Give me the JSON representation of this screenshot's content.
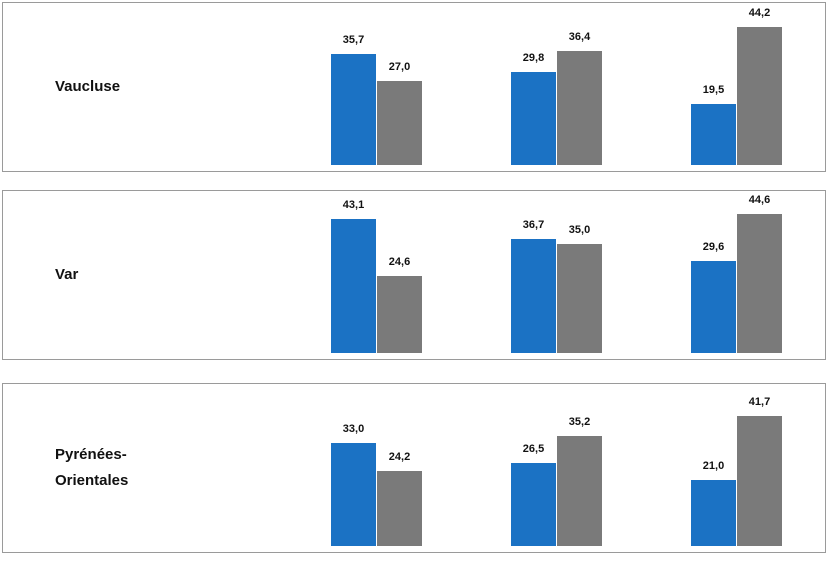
{
  "chart_data": [
    {
      "type": "bar",
      "title": "Vaucluse",
      "categories": [
        null,
        null,
        null
      ],
      "series": [
        {
          "color": "#1b72c4",
          "values": [
            35.7,
            29.8,
            19.5
          ],
          "value_labels": [
            "35,7",
            "29,8",
            "19,5"
          ]
        },
        {
          "color": "#7a7a7a",
          "values": [
            27.0,
            36.4,
            44.2
          ],
          "value_labels": [
            "27,0",
            "36,4",
            "44,2"
          ]
        }
      ]
    },
    {
      "type": "bar",
      "title": "Var",
      "categories": [
        null,
        null,
        null
      ],
      "series": [
        {
          "color": "#1b72c4",
          "values": [
            43.1,
            36.7,
            29.6
          ],
          "value_labels": [
            "43,1",
            "36,7",
            "29,6"
          ]
        },
        {
          "color": "#7a7a7a",
          "values": [
            24.6,
            35.0,
            44.6
          ],
          "value_labels": [
            "24,6",
            "35,0",
            "44,6"
          ]
        }
      ]
    },
    {
      "type": "bar",
      "title": "Pyrénées-Orientales",
      "categories": [
        null,
        null,
        null
      ],
      "series": [
        {
          "color": "#1b72c4",
          "values": [
            33.0,
            26.5,
            21.0
          ],
          "value_labels": [
            "33,0",
            "26,5",
            "21,0"
          ]
        },
        {
          "color": "#7a7a7a",
          "values": [
            24.2,
            35.2,
            41.7
          ],
          "value_labels": [
            "24,2",
            "35,2",
            "41,7"
          ]
        }
      ]
    }
  ]
}
